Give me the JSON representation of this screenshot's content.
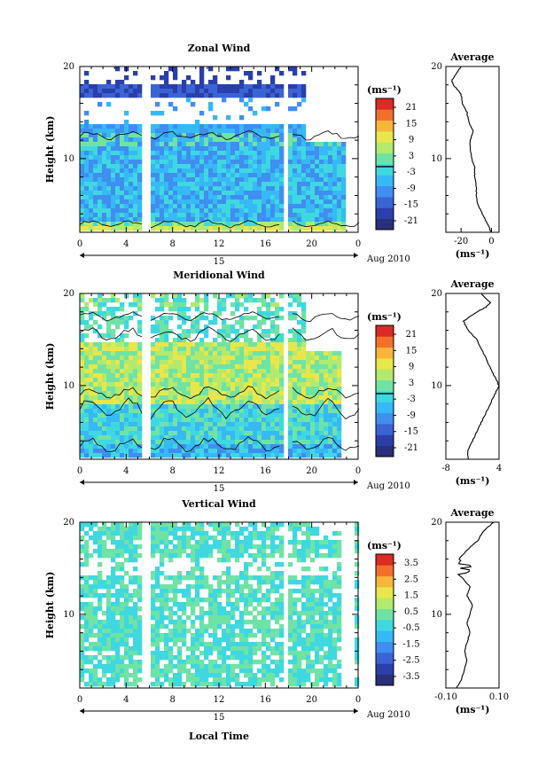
{
  "x_axis": {
    "ticks": [
      "0",
      "4",
      "8",
      "12",
      "16",
      "20",
      "0"
    ],
    "date_day": "15",
    "date_month_year": "Aug 2010",
    "label": "Local Time"
  },
  "unit_label": "(ms⁻¹)",
  "average_title": "Average",
  "chart_data": [
    {
      "type": "heatmap",
      "title": "Zonal Wind",
      "ylabel": "Height (km)",
      "ylim": [
        2,
        20
      ],
      "y_ticks": [
        "20",
        "10"
      ],
      "xlim": [
        0,
        24
      ],
      "gaps_hours": [
        [
          5.5,
          6.0
        ],
        [
          17.5,
          18.0
        ]
      ],
      "colorbar": {
        "unit": "(ms⁻¹)",
        "ticks": [
          "21",
          "15",
          "9",
          "3",
          "-3",
          "-9",
          "-15",
          "-21"
        ],
        "contour": 0,
        "colors": [
          "#2a2f7a",
          "#2b3fa8",
          "#3a63d6",
          "#3f8ef0",
          "#36b9f5",
          "#3fd8e0",
          "#6fe3a5",
          "#b2ea6e",
          "#e9e64b",
          "#f7b53a",
          "#f2702c",
          "#dc2a24"
        ]
      },
      "profile": {
        "xlim": [
          -30,
          5
        ],
        "x_ticks": [
          "-20",
          "0"
        ],
        "xlabel": "(ms⁻¹)",
        "heights": [
          2,
          3,
          4,
          5,
          6,
          7,
          8,
          9,
          10,
          11,
          12,
          13,
          14,
          15,
          16,
          17,
          18,
          18.5,
          19,
          20
        ],
        "values": [
          0,
          -3,
          -6,
          -9,
          -10,
          -10,
          -11,
          -11,
          -13,
          -14,
          -14,
          -12,
          -15,
          -16,
          -19,
          -20,
          -25,
          -26,
          -24,
          -20
        ]
      }
    },
    {
      "type": "heatmap",
      "title": "Meridional Wind",
      "ylabel": "Height (km)",
      "ylim": [
        2,
        20
      ],
      "y_ticks": [
        "20",
        "10"
      ],
      "xlim": [
        0,
        24
      ],
      "gaps_hours": [
        [
          5.5,
          6.0
        ],
        [
          17.5,
          18.0
        ]
      ],
      "colorbar": {
        "unit": "(ms⁻¹)",
        "ticks": [
          "21",
          "15",
          "9",
          "3",
          "-3",
          "-9",
          "-15",
          "-21"
        ],
        "contour": 0,
        "colors": [
          "#2a2f7a",
          "#2b3fa8",
          "#3a63d6",
          "#3f8ef0",
          "#36b9f5",
          "#3fd8e0",
          "#6fe3a5",
          "#b2ea6e",
          "#e9e64b",
          "#f7b53a",
          "#f2702c",
          "#dc2a24"
        ]
      },
      "profile": {
        "xlim": [
          -8,
          4
        ],
        "x_ticks": [
          "-8",
          "4"
        ],
        "xlabel": "(ms⁻¹)",
        "heights": [
          2,
          3,
          4,
          5,
          6,
          7,
          8,
          9,
          10,
          11,
          12,
          13,
          14,
          15,
          16,
          17,
          18,
          18.5,
          19,
          20
        ],
        "values": [
          -3,
          -3,
          -2,
          -1,
          0,
          1,
          2,
          3,
          4,
          3,
          2,
          1,
          0,
          -1,
          -3,
          -4,
          -1,
          1,
          2,
          0
        ]
      }
    },
    {
      "type": "heatmap",
      "title": "Vertical Wind",
      "ylabel": "Height (km)",
      "ylim": [
        2,
        20
      ],
      "y_ticks": [
        "20",
        "10"
      ],
      "xlim": [
        0,
        24
      ],
      "gaps_hours": [
        [
          5.5,
          6.0
        ],
        [
          17.5,
          18.0
        ]
      ],
      "colorbar": {
        "unit": "(ms⁻¹)",
        "ticks": [
          "3.5",
          "2.5",
          "1.5",
          "0.5",
          "-0.5",
          "-1.5",
          "-2.5",
          "-3.5"
        ],
        "colors": [
          "#2a2f7a",
          "#2b3fa8",
          "#3a63d6",
          "#3f8ef0",
          "#36b9f5",
          "#3fd8e0",
          "#6fe3a5",
          "#b2ea6e",
          "#e9e64b",
          "#f7b53a",
          "#f2702c",
          "#dc2a24"
        ]
      },
      "profile": {
        "xlim": [
          -0.1,
          0.1
        ],
        "x_ticks": [
          "-0.10",
          "0.10"
        ],
        "xlabel": "(ms⁻¹)",
        "heights": [
          2,
          3,
          4,
          5,
          6,
          7,
          8,
          9,
          10,
          11,
          12,
          13,
          14,
          15,
          16,
          17,
          18,
          19,
          20
        ],
        "values": [
          -0.06,
          -0.04,
          -0.03,
          -0.02,
          -0.03,
          -0.02,
          -0.01,
          -0.02,
          -0.01,
          0.0,
          -0.02,
          -0.01,
          -0.04,
          -0.03,
          -0.05,
          -0.02,
          0.02,
          0.04,
          0.08
        ]
      }
    }
  ]
}
